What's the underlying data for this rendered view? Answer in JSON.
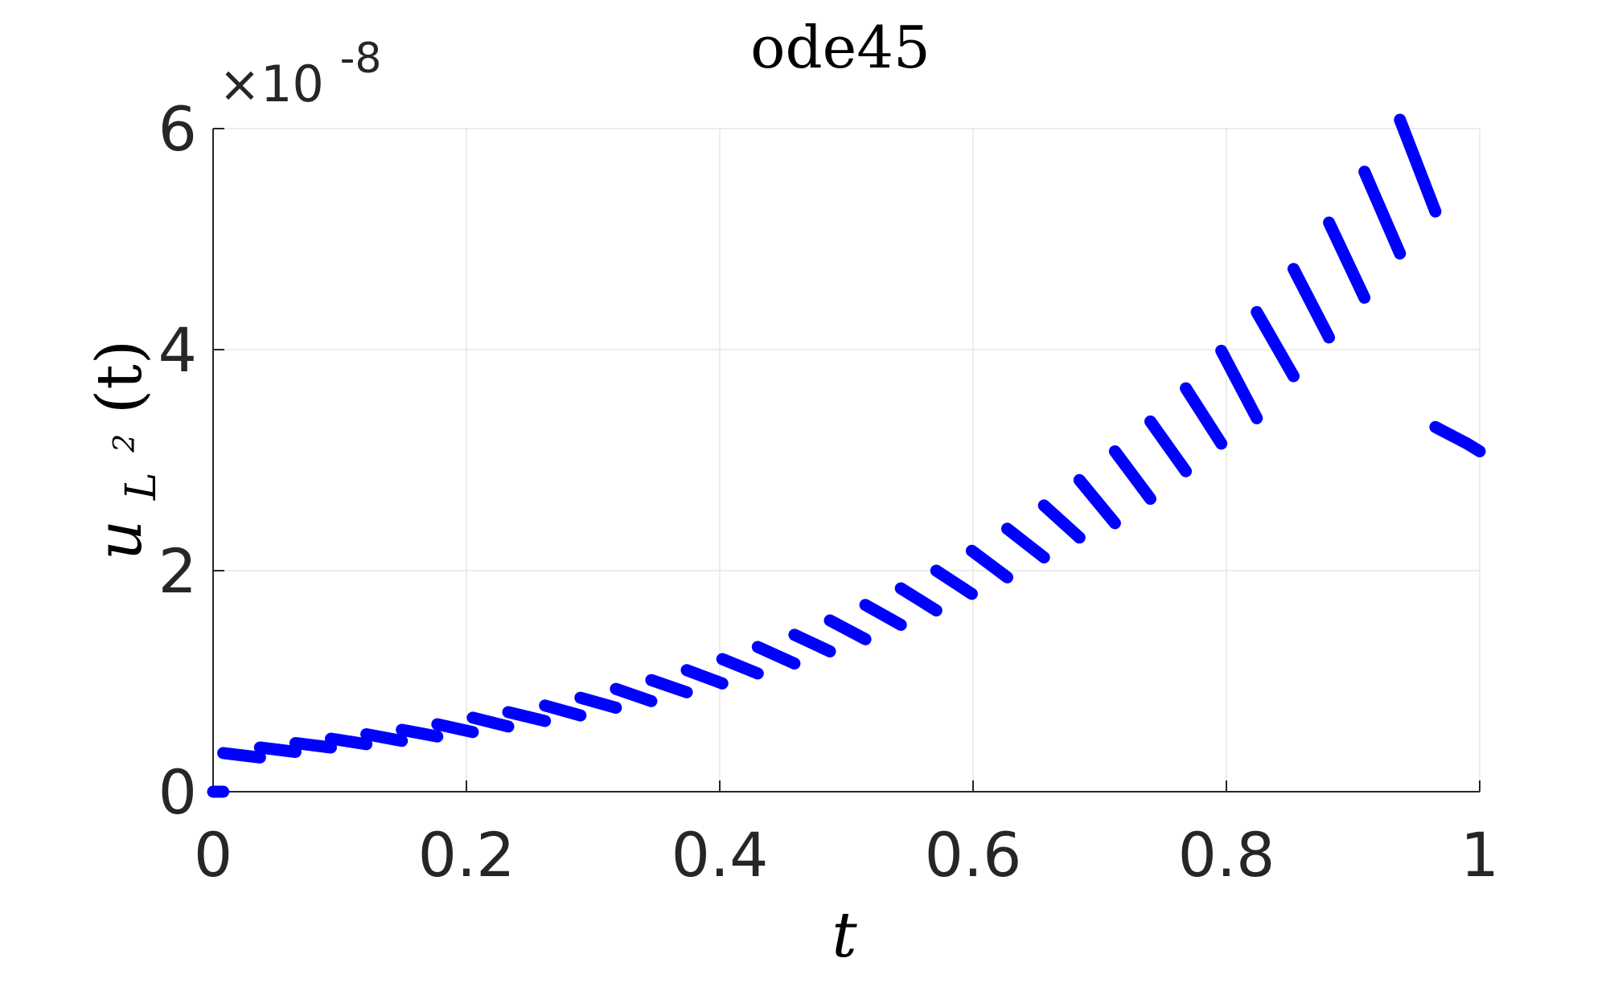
{
  "chart_data": {
    "type": "scatter",
    "title": "ode45",
    "xlabel": "t",
    "ylabel": {
      "base": "u",
      "subscript_base": "L",
      "subscript_superscript": "2",
      "argument": "(t)"
    },
    "y_exponent": {
      "prefix": "×10",
      "power": "-8"
    },
    "xlim": [
      0,
      1
    ],
    "ylim": [
      0,
      6
    ],
    "x_ticks": [
      0,
      0.2,
      0.4,
      0.6,
      0.8,
      1
    ],
    "x_tick_labels": [
      "0",
      "0.2",
      "0.4",
      "0.6",
      "0.8",
      "1"
    ],
    "y_ticks": [
      0,
      2,
      4,
      6
    ],
    "y_tick_labels": [
      "0",
      "2",
      "4",
      "6"
    ],
    "grid": true,
    "marker_color": "#0000ff",
    "series": [
      {
        "segments": [
          {
            "x": [
              0.0,
              0.008
            ],
            "y": [
              0.0,
              0.0
            ]
          },
          {
            "x": [
              0.008,
              0.037
            ],
            "y": [
              0.35,
              0.31
            ]
          },
          {
            "x": [
              0.037,
              0.065
            ],
            "y": [
              0.4,
              0.36
            ]
          },
          {
            "x": [
              0.065,
              0.093
            ],
            "y": [
              0.44,
              0.4
            ]
          },
          {
            "x": [
              0.093,
              0.121
            ],
            "y": [
              0.48,
              0.43
            ]
          },
          {
            "x": [
              0.121,
              0.149
            ],
            "y": [
              0.52,
              0.46
            ]
          },
          {
            "x": [
              0.149,
              0.177
            ],
            "y": [
              0.56,
              0.5
            ]
          },
          {
            "x": [
              0.177,
              0.205
            ],
            "y": [
              0.61,
              0.54
            ]
          },
          {
            "x": [
              0.205,
              0.233
            ],
            "y": [
              0.67,
              0.59
            ]
          },
          {
            "x": [
              0.233,
              0.262
            ],
            "y": [
              0.72,
              0.64
            ]
          },
          {
            "x": [
              0.262,
              0.29
            ],
            "y": [
              0.78,
              0.69
            ]
          },
          {
            "x": [
              0.29,
              0.318
            ],
            "y": [
              0.85,
              0.76
            ]
          },
          {
            "x": [
              0.318,
              0.346
            ],
            "y": [
              0.93,
              0.82
            ]
          },
          {
            "x": [
              0.346,
              0.374
            ],
            "y": [
              1.01,
              0.9
            ]
          },
          {
            "x": [
              0.374,
              0.402
            ],
            "y": [
              1.1,
              0.98
            ]
          },
          {
            "x": [
              0.402,
              0.43
            ],
            "y": [
              1.2,
              1.07
            ]
          },
          {
            "x": [
              0.43,
              0.459
            ],
            "y": [
              1.31,
              1.16
            ]
          },
          {
            "x": [
              0.459,
              0.487
            ],
            "y": [
              1.42,
              1.27
            ]
          },
          {
            "x": [
              0.487,
              0.515
            ],
            "y": [
              1.55,
              1.38
            ]
          },
          {
            "x": [
              0.515,
              0.543
            ],
            "y": [
              1.69,
              1.51
            ]
          },
          {
            "x": [
              0.543,
              0.571
            ],
            "y": [
              1.84,
              1.64
            ]
          },
          {
            "x": [
              0.571,
              0.599
            ],
            "y": [
              2.0,
              1.79
            ]
          },
          {
            "x": [
              0.599,
              0.627
            ],
            "y": [
              2.18,
              1.94
            ]
          },
          {
            "x": [
              0.627,
              0.656
            ],
            "y": [
              2.38,
              2.12
            ]
          },
          {
            "x": [
              0.656,
              0.684
            ],
            "y": [
              2.59,
              2.3
            ]
          },
          {
            "x": [
              0.684,
              0.712
            ],
            "y": [
              2.82,
              2.43
            ]
          },
          {
            "x": [
              0.712,
              0.74
            ],
            "y": [
              3.08,
              2.65
            ]
          },
          {
            "x": [
              0.74,
              0.768
            ],
            "y": [
              3.35,
              2.9
            ]
          },
          {
            "x": [
              0.768,
              0.796
            ],
            "y": [
              3.65,
              3.15
            ]
          },
          {
            "x": [
              0.796,
              0.824
            ],
            "y": [
              3.99,
              3.38
            ]
          },
          {
            "x": [
              0.824,
              0.853
            ],
            "y": [
              4.34,
              3.76
            ]
          },
          {
            "x": [
              0.853,
              0.881
            ],
            "y": [
              4.73,
              4.11
            ]
          },
          {
            "x": [
              0.881,
              0.909
            ],
            "y": [
              5.15,
              4.47
            ]
          },
          {
            "x": [
              0.909,
              0.937
            ],
            "y": [
              5.61,
              4.87
            ]
          },
          {
            "x": [
              0.937,
              0.965
            ],
            "y": [
              6.08,
              5.25
            ]
          },
          {
            "x": [
              0.965,
              0.99
            ],
            "y": [
              3.3,
              3.15
            ]
          },
          {
            "x": [
              0.99,
              1.0
            ],
            "y": [
              3.15,
              3.08
            ]
          }
        ]
      }
    ]
  }
}
